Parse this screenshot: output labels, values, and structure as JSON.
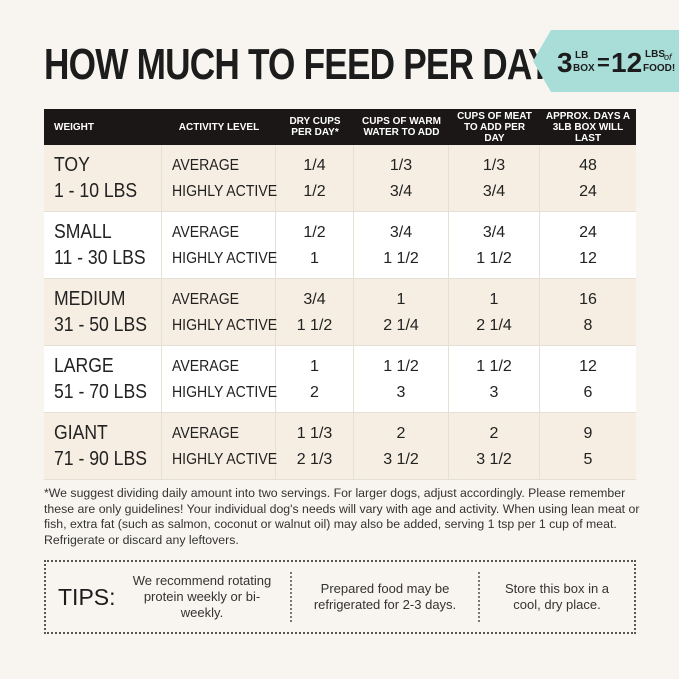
{
  "header": {
    "title": "HOW MUCH TO FEED PER DAY",
    "badge": {
      "box_weight": "3",
      "box_unit": "LB",
      "box_word": "BOX",
      "equals": "=",
      "food_weight": "12",
      "food_unit": "LBS",
      "food_of": "of",
      "food_word": "FOOD!"
    }
  },
  "table": {
    "columns": [
      "WEIGHT",
      "ACTIVITY LEVEL",
      "DRY CUPS PER DAY*",
      "CUPS OF WARM WATER TO ADD",
      "CUPS OF MEAT TO ADD PER DAY",
      "APPROX. DAYS A 3LB BOX WILL LAST"
    ],
    "rows": [
      {
        "size": "TOY",
        "range": "1 - 10 LBS",
        "levels": [
          {
            "activity": "AVERAGE",
            "dry": "1/4",
            "water": "1/3",
            "meat": "1/3",
            "days": 48
          },
          {
            "activity": "HIGHLY ACTIVE",
            "dry": "1/2",
            "water": "3/4",
            "meat": "3/4",
            "days": 24
          }
        ]
      },
      {
        "size": "SMALL",
        "range": "11 - 30 LBS",
        "levels": [
          {
            "activity": "AVERAGE",
            "dry": "1/2",
            "water": "3/4",
            "meat": "3/4",
            "days": 24
          },
          {
            "activity": "HIGHLY ACTIVE",
            "dry": "1",
            "water": "1 1/2",
            "meat": "1 1/2",
            "days": 12
          }
        ]
      },
      {
        "size": "MEDIUM",
        "range": "31 - 50 LBS",
        "levels": [
          {
            "activity": "AVERAGE",
            "dry": "3/4",
            "water": "1",
            "meat": "1",
            "days": 16
          },
          {
            "activity": "HIGHLY ACTIVE",
            "dry": "1 1/2",
            "water": "2 1/4",
            "meat": "2 1/4",
            "days": 8
          }
        ]
      },
      {
        "size": "LARGE",
        "range": "51 - 70 LBS",
        "levels": [
          {
            "activity": "AVERAGE",
            "dry": "1",
            "water": "1 1/2",
            "meat": "1 1/2",
            "days": 12
          },
          {
            "activity": "HIGHLY ACTIVE",
            "dry": "2",
            "water": "3",
            "meat": "3",
            "days": 6
          }
        ]
      },
      {
        "size": "GIANT",
        "range": "71 - 90 LBS",
        "levels": [
          {
            "activity": "AVERAGE",
            "dry": "1 1/3",
            "water": "2",
            "meat": "2",
            "days": 9
          },
          {
            "activity": "HIGHLY ACTIVE",
            "dry": "2 1/3",
            "water": "3 1/2",
            "meat": "3 1/2",
            "days": 5
          }
        ]
      }
    ]
  },
  "footnote": "*We suggest dividing daily amount into two servings. For larger dogs, adjust accordingly. Please remember these are only guidelines! Your individual dog's needs will vary with age and activity. When using lean meat or fish, extra fat (such as salmon, coconut or walnut oil) may also be added, serving 1 tsp per 1 cup of meat. Refrigerate or discard any leftovers.",
  "tips": {
    "label": "TIPS:",
    "items": [
      "We recommend rotating protein weekly or bi-weekly.",
      "Prepared food may be refrigerated for 2-3 days.",
      "Store this box in a cool, dry place."
    ]
  }
}
